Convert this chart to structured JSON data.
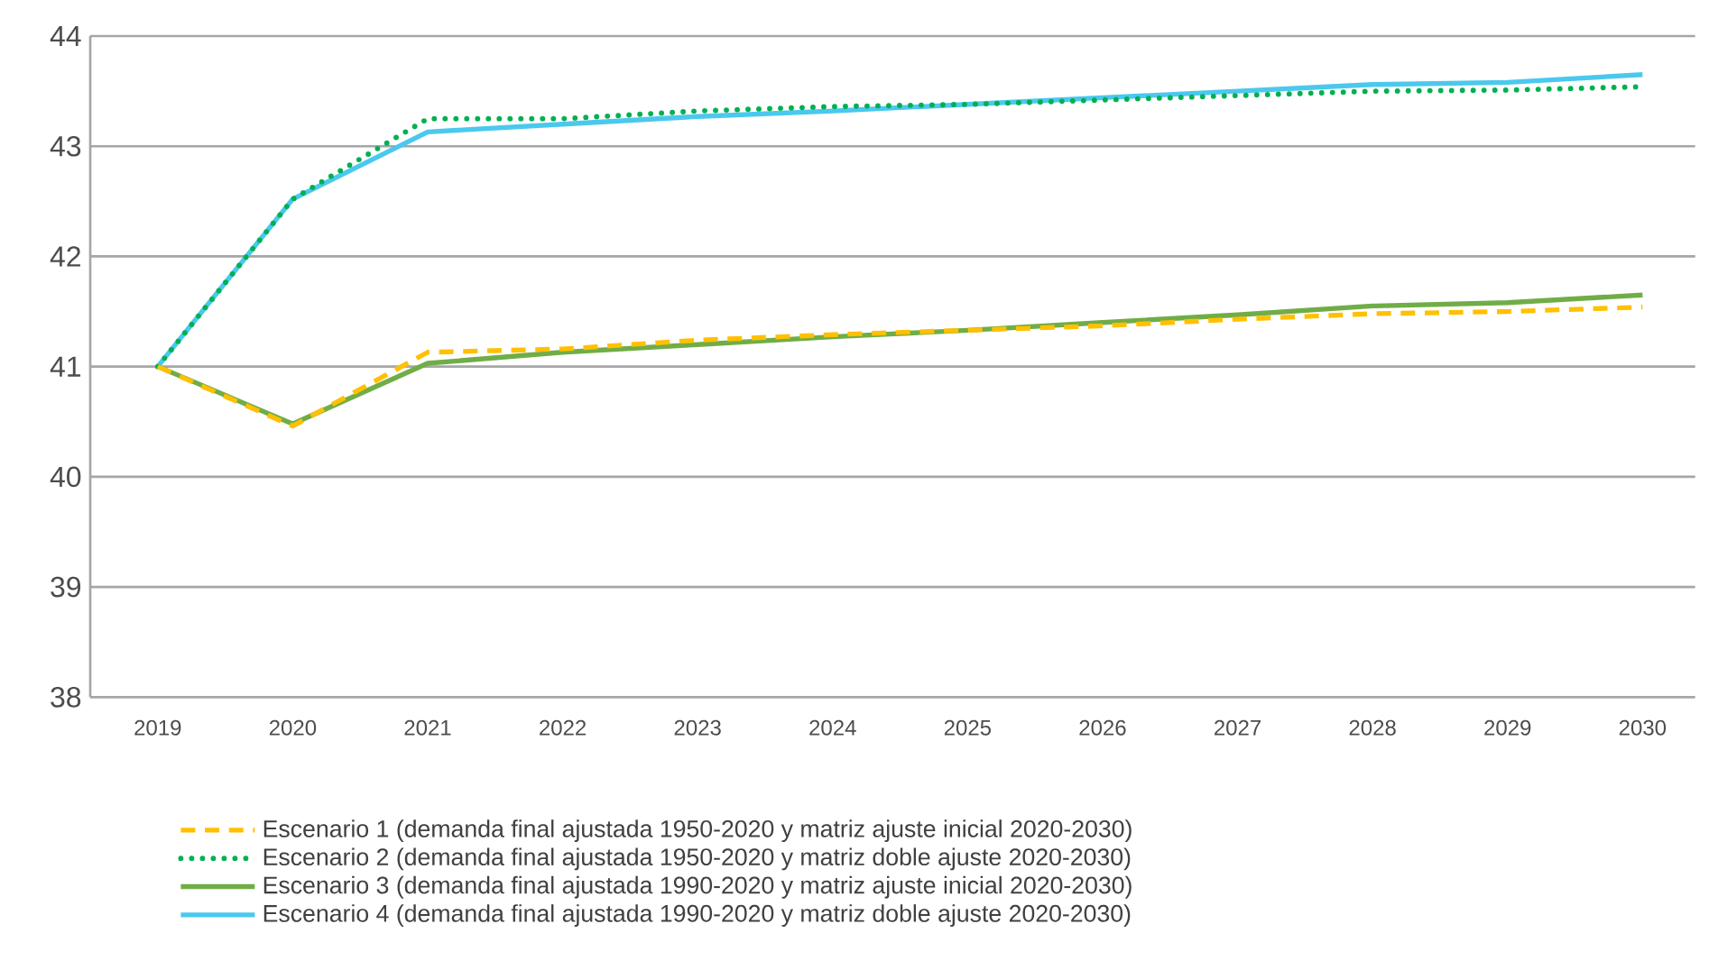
{
  "chart_data": {
    "type": "line",
    "categories": [
      "2019",
      "2020",
      "2021",
      "2022",
      "2023",
      "2024",
      "2025",
      "2026",
      "2027",
      "2028",
      "2029",
      "2030"
    ],
    "series": [
      {
        "name": "Escenario 1 (demanda final ajustada 1950-2020 y matriz ajuste inicial 2020-2030)",
        "color": "#ffc000",
        "line_style": "dashed",
        "values": [
          41.0,
          40.46,
          41.13,
          41.16,
          41.24,
          41.29,
          41.33,
          41.37,
          41.43,
          41.48,
          41.5,
          41.54
        ]
      },
      {
        "name": "Escenario 2 (demanda final ajustada 1950-2020 y matriz doble ajuste 2020-2030)",
        "color": "#00b050",
        "line_style": "dotted",
        "values": [
          41.0,
          42.52,
          43.25,
          43.25,
          43.32,
          43.36,
          43.38,
          43.42,
          43.46,
          43.5,
          43.51,
          43.54
        ]
      },
      {
        "name": "Escenario 3 (demanda final ajustada 1990-2020 y matriz ajuste inicial 2020-2030)",
        "color": "#70ad47",
        "line_style": "solid",
        "values": [
          41.0,
          40.48,
          41.03,
          41.13,
          41.2,
          41.27,
          41.33,
          41.4,
          41.47,
          41.55,
          41.58,
          41.65
        ]
      },
      {
        "name": "Escenario 4 (demanda final ajustada 1990-2020 y matriz doble ajuste 2020-2030)",
        "color": "#4bc8ee",
        "line_style": "solid",
        "values": [
          41.0,
          42.52,
          43.13,
          43.2,
          43.27,
          43.32,
          43.38,
          43.44,
          43.5,
          43.56,
          43.58,
          43.65
        ]
      }
    ],
    "ylim": [
      38,
      44
    ],
    "yticks": [
      38,
      39,
      40,
      41,
      42,
      43,
      44
    ],
    "grid": "y",
    "legend": "bottom",
    "marker": "none"
  }
}
